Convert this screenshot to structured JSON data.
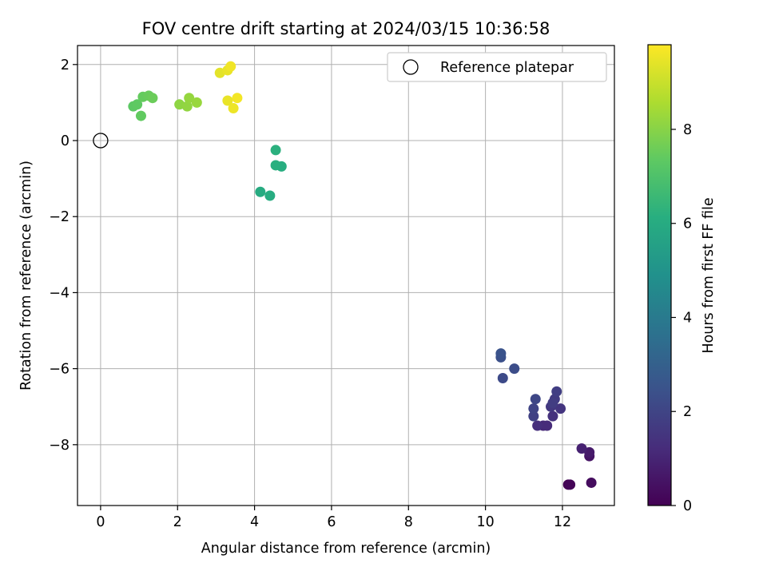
{
  "chart_data": {
    "type": "scatter",
    "title": "FOV centre drift starting at 2024/03/15 10:36:58",
    "xlabel": "Angular distance from reference (arcmin)",
    "ylabel": "Rotation from reference (arcmin)",
    "xlim": [
      -0.6,
      13.35
    ],
    "ylim": [
      -9.6,
      2.5
    ],
    "xticks": [
      0,
      2,
      4,
      6,
      8,
      10,
      12
    ],
    "yticks": [
      2,
      0,
      -2,
      -4,
      -6,
      -8
    ],
    "xtick_labels": [
      "0",
      "2",
      "4",
      "6",
      "8",
      "10",
      "12"
    ],
    "ytick_labels": [
      "2",
      "0",
      "−2",
      "−4",
      "−6",
      "−8"
    ],
    "grid": true,
    "legend": {
      "position": "top-right",
      "label": "Reference platepar"
    },
    "reference_point": {
      "x": 0,
      "y": 0
    },
    "colormap": "viridis",
    "colorbar": {
      "label": "Hours from first FF file",
      "range": [
        0,
        9.8
      ],
      "ticks": [
        0,
        2,
        4,
        6,
        8
      ],
      "tick_labels": [
        "0",
        "2",
        "4",
        "6",
        "8"
      ]
    },
    "series": [
      {
        "points": [
          {
            "x": 12.15,
            "y": -9.05,
            "c": 0.0
          },
          {
            "x": 12.2,
            "y": -9.05,
            "c": 0.1
          },
          {
            "x": 12.75,
            "y": -9.0,
            "c": 0.3
          },
          {
            "x": 12.7,
            "y": -8.3,
            "c": 0.5
          },
          {
            "x": 12.7,
            "y": -8.2,
            "c": 0.7
          },
          {
            "x": 12.5,
            "y": -8.1,
            "c": 0.9
          },
          {
            "x": 11.5,
            "y": -7.5,
            "c": 1.1
          },
          {
            "x": 11.6,
            "y": -7.5,
            "c": 1.2
          },
          {
            "x": 11.35,
            "y": -7.5,
            "c": 1.3
          },
          {
            "x": 11.75,
            "y": -7.25,
            "c": 1.4
          },
          {
            "x": 11.95,
            "y": -7.05,
            "c": 1.5
          },
          {
            "x": 11.7,
            "y": -7.0,
            "c": 1.6
          },
          {
            "x": 11.8,
            "y": -6.8,
            "c": 1.7
          },
          {
            "x": 11.85,
            "y": -6.6,
            "c": 1.8
          },
          {
            "x": 11.75,
            "y": -6.9,
            "c": 1.75
          },
          {
            "x": 11.25,
            "y": -7.25,
            "c": 1.9
          },
          {
            "x": 11.25,
            "y": -7.05,
            "c": 2.0
          },
          {
            "x": 11.3,
            "y": -6.8,
            "c": 2.1
          },
          {
            "x": 10.45,
            "y": -6.25,
            "c": 2.2
          },
          {
            "x": 10.75,
            "y": -6.0,
            "c": 2.3
          },
          {
            "x": 10.4,
            "y": -5.7,
            "c": 2.4
          },
          {
            "x": 10.4,
            "y": -5.6,
            "c": 2.5
          },
          {
            "x": 4.15,
            "y": -1.35,
            "c": 6.0
          },
          {
            "x": 4.4,
            "y": -1.45,
            "c": 6.05
          },
          {
            "x": 4.7,
            "y": -0.68,
            "c": 6.1
          },
          {
            "x": 4.55,
            "y": -0.65,
            "c": 6.15
          },
          {
            "x": 4.55,
            "y": -0.25,
            "c": 6.2
          },
          {
            "x": 0.85,
            "y": 0.9,
            "c": 7.3
          },
          {
            "x": 0.95,
            "y": 0.95,
            "c": 7.35
          },
          {
            "x": 1.05,
            "y": 0.65,
            "c": 7.4
          },
          {
            "x": 1.1,
            "y": 1.15,
            "c": 7.45
          },
          {
            "x": 1.25,
            "y": 1.18,
            "c": 7.5
          },
          {
            "x": 1.35,
            "y": 1.12,
            "c": 7.55
          },
          {
            "x": 2.05,
            "y": 0.95,
            "c": 8.1
          },
          {
            "x": 2.25,
            "y": 0.9,
            "c": 8.15
          },
          {
            "x": 2.3,
            "y": 1.12,
            "c": 8.2
          },
          {
            "x": 2.5,
            "y": 1.0,
            "c": 8.25
          },
          {
            "x": 3.1,
            "y": 1.78,
            "c": 9.4
          },
          {
            "x": 3.3,
            "y": 1.85,
            "c": 9.5
          },
          {
            "x": 3.38,
            "y": 1.95,
            "c": 9.6
          },
          {
            "x": 3.3,
            "y": 1.05,
            "c": 9.5
          },
          {
            "x": 3.45,
            "y": 0.85,
            "c": 9.55
          },
          {
            "x": 3.55,
            "y": 1.12,
            "c": 9.65
          }
        ]
      }
    ]
  }
}
